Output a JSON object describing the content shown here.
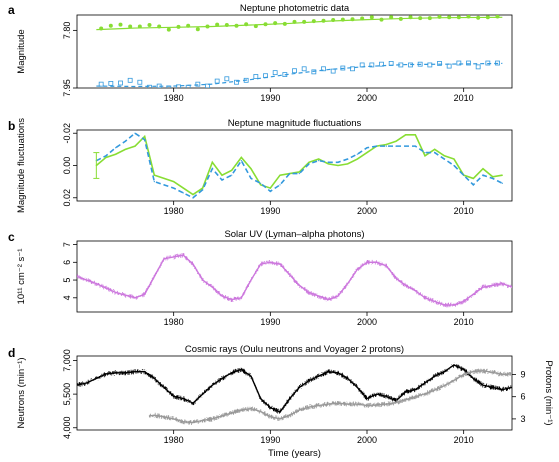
{
  "chart_data": [
    {
      "panel": "a",
      "type": "scatter",
      "title": "Neptune photometric data",
      "xlabel": "",
      "ylabel": "Magnitude",
      "xlim": [
        1970,
        2015
      ],
      "ylim": [
        7.95,
        7.76
      ],
      "y_reversed": true,
      "x_ticks": [
        1980,
        1990,
        2000,
        2010
      ],
      "y_ticks": [
        "7.80",
        "7.95"
      ],
      "series": [
        {
          "style": "filled-points-with-solid-fit",
          "color": "#88dd33",
          "x": [
            1972.5,
            1973.5,
            1974.5,
            1975.5,
            1976.5,
            1977.5,
            1978.5,
            1979.5,
            1980.5,
            1981.5,
            1982.5,
            1983.5,
            1984.5,
            1985.5,
            1986.5,
            1987.5,
            1988.5,
            1989.5,
            1990.5,
            1991.5,
            1992.5,
            1993.5,
            1994.5,
            1995.5,
            1996.5,
            1997.5,
            1998.5,
            1999.5,
            2000.5,
            2001.5,
            2002.5,
            2003.5,
            2004.5,
            2005.5,
            2006.5,
            2007.5,
            2008.5,
            2009.5,
            2010.5,
            2011.5,
            2012.5,
            2013.5
          ],
          "y": [
            7.795,
            7.788,
            7.785,
            7.79,
            7.79,
            7.786,
            7.79,
            7.798,
            7.791,
            7.788,
            7.797,
            7.79,
            7.785,
            7.786,
            7.788,
            7.784,
            7.789,
            7.784,
            7.781,
            7.783,
            7.778,
            7.778,
            7.776,
            7.775,
            7.773,
            7.772,
            7.771,
            7.769,
            7.766,
            7.772,
            7.766,
            7.77,
            7.766,
            7.768,
            7.768,
            7.765,
            7.766,
            7.766,
            7.764,
            7.767,
            7.766,
            7.764
          ],
          "fit_x": [
            1972,
            1976,
            1980,
            1984,
            1988,
            1992,
            1996,
            2000,
            2004,
            2008,
            2014
          ],
          "fit_y": [
            7.798,
            7.794,
            7.792,
            7.79,
            7.786,
            7.782,
            7.776,
            7.772,
            7.769,
            7.767,
            7.766
          ]
        },
        {
          "style": "open-squares-with-dashed-fit",
          "color": "#3399dd",
          "x": [
            1972.5,
            1973.5,
            1974.5,
            1975.5,
            1976.5,
            1977.5,
            1978.5,
            1979.5,
            1980.5,
            1981.5,
            1982.5,
            1983.5,
            1984.5,
            1985.5,
            1986.5,
            1987.5,
            1988.5,
            1989.5,
            1990.5,
            1991.5,
            1992.5,
            1993.5,
            1994.5,
            1995.5,
            1996.5,
            1997.5,
            1998.5,
            1999.5,
            2000.5,
            2001.5,
            2002.5,
            2003.5,
            2004.5,
            2005.5,
            2006.5,
            2007.5,
            2008.5,
            2009.5,
            2010.5,
            2011.5,
            2012.5,
            2013.5
          ],
          "y": [
            7.94,
            7.938,
            7.937,
            7.93,
            7.935,
            7.948,
            7.945,
            7.95,
            7.947,
            7.948,
            7.94,
            7.945,
            7.932,
            7.926,
            7.935,
            7.93,
            7.92,
            7.918,
            7.91,
            7.915,
            7.905,
            7.9,
            7.908,
            7.9,
            7.906,
            7.898,
            7.9,
            7.89,
            7.89,
            7.888,
            7.886,
            7.89,
            7.89,
            7.888,
            7.89,
            7.886,
            7.893,
            7.885,
            7.885,
            7.895,
            7.885,
            7.885
          ],
          "fit_x": [
            1972,
            1976,
            1980,
            1984,
            1988,
            1992,
            1996,
            2000,
            2004,
            2008,
            2014
          ],
          "fit_y": [
            7.945,
            7.946,
            7.945,
            7.94,
            7.928,
            7.914,
            7.902,
            7.894,
            7.889,
            7.888,
            7.886
          ]
        }
      ]
    },
    {
      "panel": "b",
      "type": "line",
      "title": "Neptune magnitude fluctuations",
      "xlabel": "",
      "ylabel": "Magnitude fluctuations",
      "xlim": [
        1970,
        2015
      ],
      "ylim": [
        0.022,
        -0.022
      ],
      "y_reversed": true,
      "x_ticks": [
        1980,
        1990,
        2000,
        2010
      ],
      "y_ticks": [
        "-0.02",
        "0.00",
        "0.02"
      ],
      "series": [
        {
          "style": "solid",
          "color": "#88dd33",
          "x": [
            1972,
            1973,
            1974,
            1975,
            1976,
            1977,
            1978,
            1979,
            1980,
            1981,
            1982,
            1983,
            1984,
            1985,
            1986,
            1987,
            1988,
            1989,
            1990,
            1991,
            1992,
            1993,
            1994,
            1995,
            1996,
            1997,
            1998,
            1999,
            2000,
            2001,
            2002,
            2003,
            2004,
            2005,
            2006,
            2007,
            2008,
            2009,
            2010,
            2011,
            2012,
            2013,
            2014
          ],
          "y": [
            0.0,
            -0.005,
            -0.007,
            -0.01,
            -0.012,
            -0.018,
            0.006,
            0.008,
            0.01,
            0.014,
            0.018,
            0.014,
            -0.002,
            0.006,
            0.003,
            -0.005,
            0.002,
            0.012,
            0.014,
            0.006,
            0.005,
            0.004,
            -0.002,
            -0.004,
            -0.001,
            0.0,
            -0.001,
            -0.004,
            -0.008,
            -0.012,
            -0.013,
            -0.015,
            -0.019,
            -0.019,
            -0.006,
            -0.01,
            -0.006,
            -0.004,
            0.006,
            0.008,
            0.002,
            0.007,
            0.006
          ]
        },
        {
          "style": "dashed",
          "color": "#3399dd",
          "x": [
            1972,
            1973,
            1974,
            1975,
            1976,
            1977,
            1978,
            1979,
            1980,
            1981,
            1982,
            1983,
            1984,
            1985,
            1986,
            1987,
            1988,
            1989,
            1990,
            1991,
            1992,
            1993,
            1994,
            1995,
            1996,
            1997,
            1998,
            1999,
            2000,
            2001,
            2002,
            2003,
            2004,
            2005,
            2006,
            2007,
            2008,
            2009,
            2010,
            2011,
            2012,
            2013,
            2014
          ],
          "y": [
            -0.003,
            -0.006,
            -0.011,
            -0.015,
            -0.02,
            -0.016,
            0.01,
            0.012,
            0.014,
            0.017,
            0.02,
            0.015,
            0.002,
            0.009,
            0.006,
            -0.003,
            0.008,
            0.011,
            0.016,
            0.012,
            0.005,
            0.005,
            -0.001,
            -0.003,
            -0.002,
            -0.002,
            -0.004,
            -0.007,
            -0.011,
            -0.012,
            -0.012,
            -0.012,
            -0.012,
            -0.012,
            -0.008,
            -0.008,
            -0.004,
            0.0,
            0.006,
            0.012,
            0.006,
            0.008,
            0.011
          ]
        }
      ],
      "error_bar": {
        "x": 1972,
        "y": 0.0,
        "err": 0.008,
        "color": "#88dd33"
      }
    },
    {
      "panel": "c",
      "type": "line",
      "title": "Solar UV (Lyman–alpha photons)",
      "xlabel": "",
      "ylabel": "10¹¹ cm⁻² s⁻¹",
      "xlim": [
        1970,
        2015
      ],
      "ylim": [
        3.2,
        7.2
      ],
      "x_ticks": [
        1980,
        1990,
        2000,
        2010
      ],
      "y_ticks": [
        "4",
        "5",
        "6",
        "7"
      ],
      "series": [
        {
          "style": "dense-daily",
          "color": "#cc77dd",
          "x": [
            1970,
            1972,
            1974,
            1976,
            1977,
            1978,
            1979,
            1980,
            1981,
            1982,
            1983,
            1984,
            1985,
            1986,
            1987,
            1988,
            1989,
            1990,
            1991,
            1992,
            1993,
            1994,
            1995,
            1996,
            1997,
            1998,
            1999,
            2000,
            2001,
            2002,
            2003,
            2004,
            2005,
            2006,
            2007,
            2008,
            2009,
            2010,
            2011,
            2012,
            2013,
            2014,
            2015
          ],
          "y": [
            5.2,
            4.8,
            4.3,
            4.0,
            4.2,
            5.2,
            6.2,
            6.3,
            6.4,
            5.9,
            5.0,
            4.6,
            4.1,
            3.9,
            4.0,
            5.0,
            5.9,
            6.0,
            5.9,
            5.3,
            4.7,
            4.3,
            4.1,
            3.9,
            4.1,
            4.8,
            5.6,
            6.0,
            6.0,
            5.8,
            5.1,
            4.7,
            4.4,
            4.0,
            3.8,
            3.6,
            3.6,
            3.8,
            4.2,
            4.6,
            4.7,
            4.8,
            4.6
          ]
        }
      ]
    },
    {
      "panel": "d",
      "type": "line",
      "title": "Cosmic rays (Oulu neutrons and Voyager 2 protons)",
      "xlabel": "Time (years)",
      "ylabel": "Neutrons (min⁻¹)",
      "ylabel_right": "Protons (min⁻¹)",
      "xlim": [
        1970,
        2015
      ],
      "ylim": [
        3900,
        7200
      ],
      "ylim_right": [
        1.5,
        11.5
      ],
      "x_ticks": [
        1980,
        1990,
        2000,
        2010
      ],
      "y_ticks": [
        "4,000",
        "5,500",
        "7,000"
      ],
      "y_ticks_right": [
        "3",
        "6",
        "9"
      ],
      "series": [
        {
          "name": "Oulu neutrons",
          "style": "dense-daily",
          "color": "#000000",
          "axis": "left",
          "x": [
            1970,
            1971,
            1972,
            1973,
            1974,
            1975,
            1976,
            1977,
            1978,
            1979,
            1980,
            1981,
            1982,
            1983,
            1984,
            1985,
            1986,
            1987,
            1988,
            1989,
            1990,
            1991,
            1992,
            1993,
            1994,
            1995,
            1996,
            1997,
            1998,
            1999,
            2000,
            2001,
            2002,
            2003,
            2004,
            2005,
            2006,
            2007,
            2008,
            2009,
            2010,
            2011,
            2012,
            2013,
            2014,
            2015
          ],
          "y": [
            5900,
            6000,
            6200,
            6400,
            6450,
            6450,
            6500,
            6500,
            6200,
            5800,
            5400,
            5300,
            5100,
            5500,
            5900,
            6200,
            6450,
            6600,
            6300,
            5300,
            4900,
            4700,
            5300,
            5800,
            6100,
            6300,
            6500,
            6450,
            6200,
            5800,
            5300,
            5500,
            5400,
            5200,
            5600,
            5700,
            6000,
            6300,
            6500,
            6800,
            6600,
            6200,
            5900,
            5800,
            5700,
            5800
          ]
        },
        {
          "name": "Voyager 2 protons",
          "style": "dense-daily",
          "color": "#999999",
          "axis": "right",
          "x": [
            1977.5,
            1978,
            1979,
            1980,
            1981,
            1982,
            1983,
            1984,
            1985,
            1986,
            1987,
            1988,
            1989,
            1990,
            1991,
            1992,
            1993,
            1994,
            1995,
            1996,
            1997,
            1998,
            1999,
            2000,
            2001,
            2002,
            2003,
            2004,
            2005,
            2006,
            2007,
            2008,
            2009,
            2010,
            2011,
            2012,
            2013,
            2014,
            2015
          ],
          "y": [
            3.4,
            3.5,
            3.3,
            3.0,
            2.6,
            2.5,
            2.8,
            3.0,
            3.4,
            3.8,
            4.2,
            4.4,
            4.0,
            3.3,
            3.0,
            3.5,
            4.2,
            4.6,
            4.8,
            5.0,
            5.1,
            5.0,
            5.0,
            4.8,
            4.9,
            5.0,
            5.2,
            5.6,
            6.0,
            6.4,
            6.9,
            7.5,
            8.2,
            9.0,
            9.4,
            9.5,
            9.3,
            9.0,
            9.1
          ]
        }
      ]
    }
  ]
}
